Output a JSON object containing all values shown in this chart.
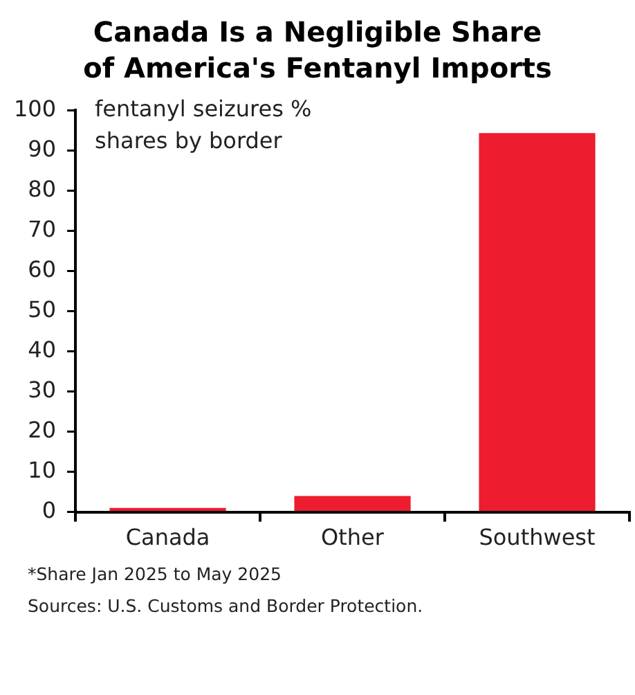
{
  "chart_data": {
    "type": "bar",
    "title": "Canada Is a Negligible Share\nof America's Fentanyl Imports",
    "ylabel": "fentanyl seizures %\nshares by border",
    "categories": [
      "Canada",
      "Other",
      "Southwest"
    ],
    "values": [
      1.0,
      4.0,
      94.3
    ],
    "color": "#ed1c2e",
    "ylim": [
      0,
      100
    ],
    "yticks": [
      0,
      10,
      20,
      30,
      40,
      50,
      60,
      70,
      80,
      90,
      100
    ],
    "grid": false,
    "legend": false,
    "annotations": [
      "*Share Jan 2025 to May 2025",
      "Sources: U.S. Customs and Border Protection."
    ]
  }
}
